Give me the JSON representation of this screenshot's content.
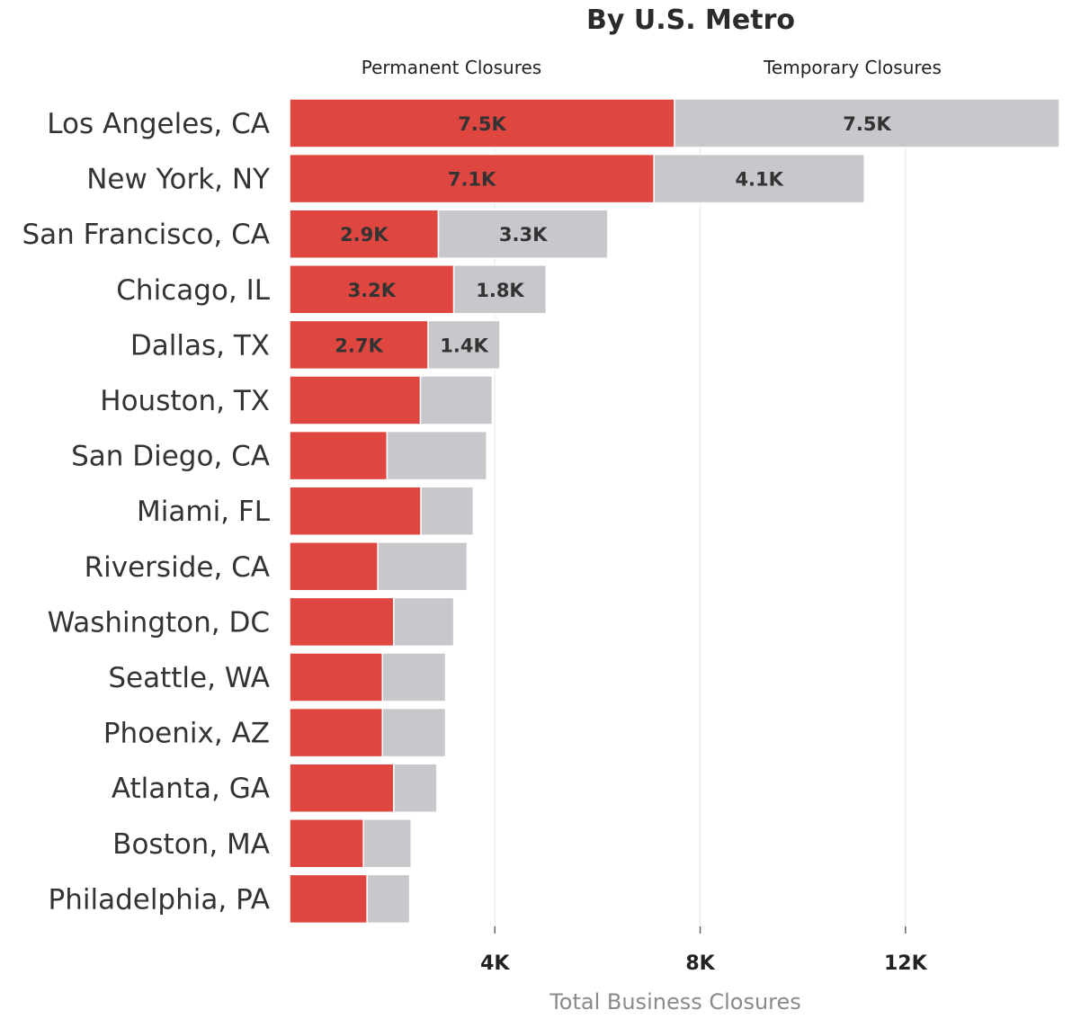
{
  "chart_data": {
    "type": "bar",
    "orientation": "horizontal",
    "stacked": true,
    "title": "By U.S. Metro",
    "xlabel": "Total Business Closures",
    "ylabel": "",
    "xlim": [
      0,
      15000
    ],
    "x_ticks": [
      {
        "value": 4000,
        "label": "4K"
      },
      {
        "value": 8000,
        "label": "8K"
      },
      {
        "value": 12000,
        "label": "12K"
      }
    ],
    "grid": "vertical",
    "legend_position": "top",
    "categories": [
      "Los Angeles, CA",
      "New York, NY",
      "San Francisco, CA",
      "Chicago, IL",
      "Dallas, TX",
      "Houston, TX",
      "San Diego, CA",
      "Miami, FL",
      "Riverside, CA",
      "Washington, DC",
      "Seattle, WA",
      "Phoenix, AZ",
      "Atlanta, GA",
      "Boston, MA",
      "Philadelphia, PA"
    ],
    "series": [
      {
        "name": "Permanent Closures",
        "color": "#e04640",
        "values": [
          7500,
          7100,
          2900,
          3200,
          2700,
          2550,
          1900,
          2560,
          1720,
          2030,
          1810,
          1810,
          2030,
          1440,
          1510
        ],
        "data_labels": [
          "7.5K",
          "7.1K",
          "2.9K",
          "3.2K",
          "2.7K",
          "",
          "",
          "",
          "",
          "",
          "",
          "",
          "",
          "",
          ""
        ]
      },
      {
        "name": "Temporary Closures",
        "color": "#c8c7cc",
        "values": [
          7500,
          4100,
          3300,
          1800,
          1400,
          1400,
          1940,
          1020,
          1740,
          1170,
          1230,
          1230,
          840,
          930,
          830
        ],
        "data_labels": [
          "7.5K",
          "4.1K",
          "3.3K",
          "1.8K",
          "1.4K",
          "",
          "",
          "",
          "",
          "",
          "",
          "",
          "",
          "",
          ""
        ]
      }
    ]
  }
}
